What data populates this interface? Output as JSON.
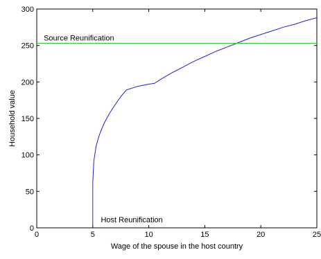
{
  "chart_data": {
    "type": "line",
    "xlabel": "Wage of the spouse in the host country",
    "ylabel": "Household value",
    "xlim": [
      0,
      25
    ],
    "ylim": [
      0,
      300
    ],
    "x_ticks": [
      0,
      5,
      10,
      15,
      20,
      25
    ],
    "y_ticks": [
      0,
      50,
      100,
      150,
      200,
      250,
      300
    ],
    "grid": false,
    "series": [
      {
        "kind": "curve",
        "color": "#1f1fd8",
        "x": [
          5,
          5,
          5.1,
          5.3,
          5.6,
          6,
          6.5,
          7,
          7.5,
          8,
          9,
          10,
          10.5,
          11,
          12,
          13,
          14,
          15,
          16,
          17,
          18,
          19,
          20,
          21,
          22,
          23,
          24,
          25
        ],
        "y": [
          0,
          62,
          92,
          112,
          128,
          143,
          157,
          169,
          180,
          189,
          194,
          197,
          198,
          203,
          212,
          220,
          228,
          235,
          242,
          248,
          254,
          260,
          265,
          270,
          275,
          279,
          284,
          288
        ]
      },
      {
        "kind": "hline",
        "name": "Source Reunification",
        "color": "#33cc33",
        "y": 253
      }
    ],
    "annotations": [
      {
        "text": "Source Reunification",
        "x": 0.5,
        "y": 253
      },
      {
        "text": "Host Reunification",
        "x": 5.6,
        "y": 0
      }
    ]
  }
}
